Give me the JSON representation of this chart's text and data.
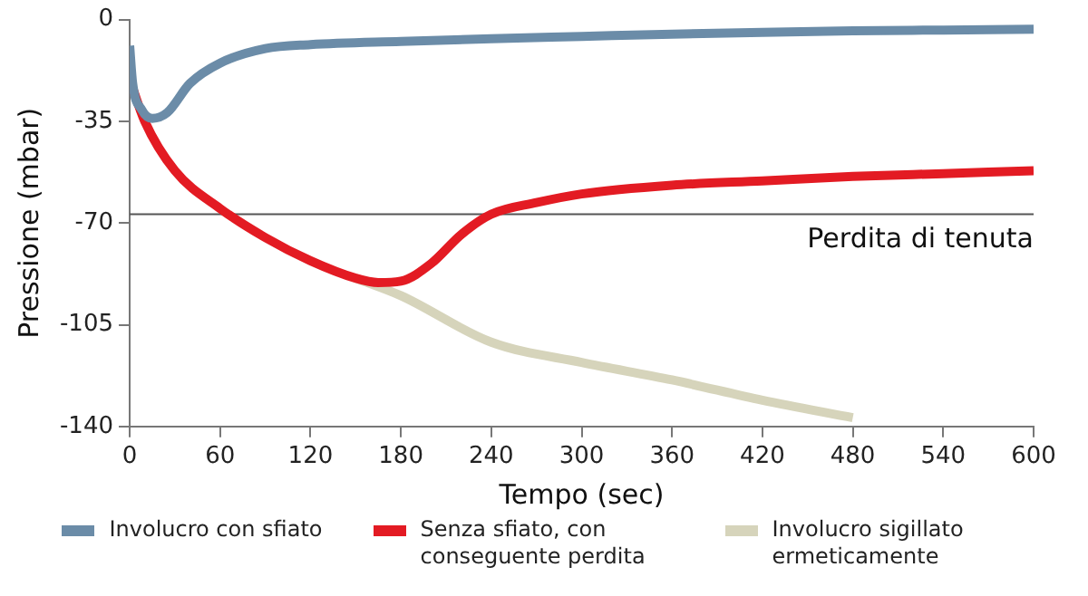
{
  "chart_data": {
    "type": "line",
    "xlabel": "Tempo (sec)",
    "ylabel": "Pressione (mbar)",
    "xlim": [
      0,
      600
    ],
    "xticks": [
      0,
      60,
      120,
      180,
      240,
      300,
      360,
      420,
      480,
      540,
      600
    ],
    "ylim": [
      -140,
      0
    ],
    "yticks": [
      -140,
      -105,
      -70,
      -35,
      0
    ],
    "grid": false,
    "legend": "bottom",
    "marker": "none",
    "line_style": "solid",
    "ref_lines": [
      {
        "axis": "y",
        "value": -67,
        "label": "Perdita di tenuta",
        "color": "#555555"
      }
    ],
    "series": [
      {
        "name": "Involucro con sfiato",
        "color": "#6b8ca8",
        "x": [
          0,
          2,
          8,
          15,
          25,
          40,
          60,
          90,
          120,
          180,
          240,
          300,
          360,
          420,
          480,
          540,
          600
        ],
        "values": [
          -9,
          -22,
          -31,
          -34,
          -32,
          -22,
          -15,
          -10,
          -8.6,
          -7.5,
          -6.6,
          -5.8,
          -5,
          -4.4,
          -3.9,
          -3.6,
          -3.3
        ]
      },
      {
        "name": "Senza sfiato, con conseguente perdita",
        "color": "#e31b23",
        "x": [
          0,
          10,
          30,
          60,
          90,
          120,
          150,
          165,
          180,
          200,
          220,
          240,
          270,
          300,
          360,
          420,
          480,
          540,
          600
        ],
        "values": [
          -20.5,
          -35,
          -52,
          -65,
          -75,
          -83,
          -89,
          -90.5,
          -90,
          -84,
          -74,
          -67,
          -63,
          -60,
          -57,
          -55.5,
          -54,
          -53,
          -52
        ]
      },
      {
        "name": "Involucro sigillato ermeticamente",
        "color": "#d6d4bb",
        "x": [
          150,
          180,
          240,
          300,
          360,
          420,
          480
        ],
        "values": [
          -89,
          -95,
          -111,
          -118,
          -124,
          -131,
          -137
        ]
      }
    ]
  }
}
